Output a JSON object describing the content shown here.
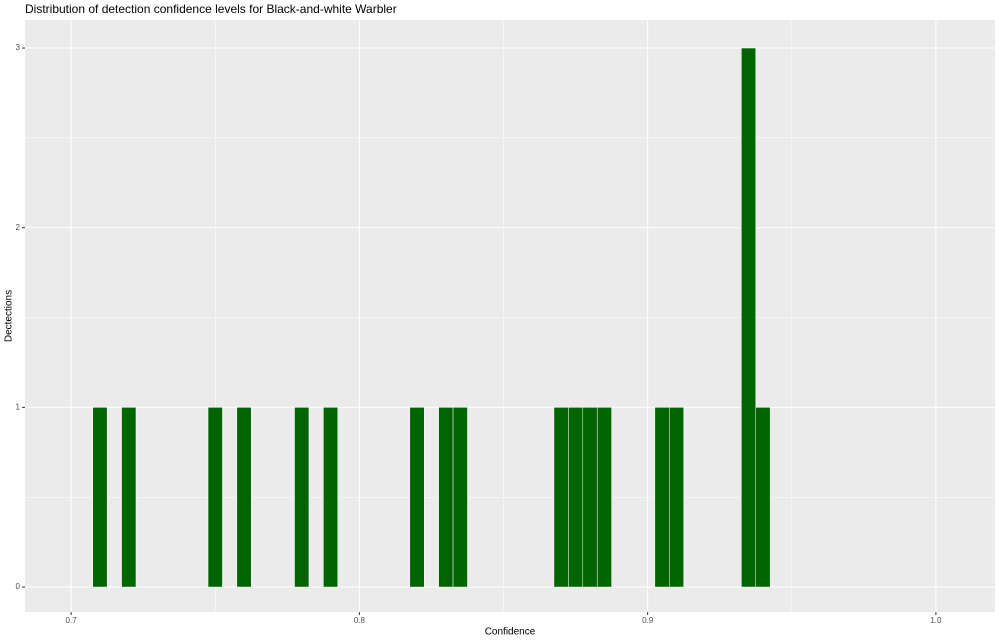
{
  "chart_data": {
    "type": "histogram",
    "title": "Distribution of detection confidence levels for Black-and-white Warbler",
    "x_label": "Confidence",
    "y_label": "Dectections",
    "bins": [
      0.7075,
      0.7125,
      0.7175,
      0.7225,
      0.7275,
      0.7325,
      0.7375,
      0.7425,
      0.7475,
      0.7525,
      0.7575,
      0.7625,
      0.7675,
      0.7725,
      0.7775,
      0.7825,
      0.7875,
      0.7925,
      0.7975,
      0.8025,
      0.8075,
      0.8125,
      0.8175,
      0.8225,
      0.8275,
      0.8325,
      0.8375,
      0.8425,
      0.8475,
      0.8525,
      0.8575,
      0.8625,
      0.8675,
      0.8725,
      0.8775,
      0.8825,
      0.8875,
      0.8925,
      0.8975,
      0.9025,
      0.9075,
      0.9125,
      0.9175,
      0.9225,
      0.9275,
      0.9325,
      0.9375,
      0.9425
    ],
    "values": [
      1,
      0,
      1,
      0,
      0,
      0,
      0,
      0,
      1,
      0,
      1,
      0,
      0,
      0,
      1,
      0,
      1,
      0,
      0,
      0,
      0,
      0,
      1,
      0,
      1,
      1,
      0,
      0,
      0,
      0,
      0,
      0,
      1,
      1,
      1,
      1,
      0,
      0,
      0,
      1,
      1,
      0,
      0,
      0,
      0,
      3,
      1
    ],
    "color": "#006400",
    "edge_color": "#ffffff",
    "xlim": [
      0.684,
      1.0205
    ],
    "xticks": [
      0.7,
      0.8,
      0.9,
      {
        "value": 1.0,
        "label": "1.0"
      }
    ],
    "ylim": [
      -0.139,
      3.156
    ],
    "yticks": [
      0,
      1,
      2,
      3
    ],
    "grid": true
  }
}
